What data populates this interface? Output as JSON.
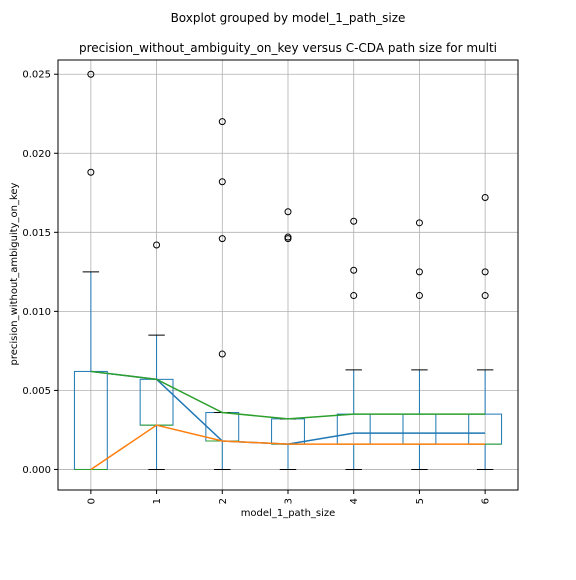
{
  "chart_data": {
    "type": "boxplot",
    "suptitle": "Boxplot grouped by model_1_path_size",
    "title": "precision_without_ambiguity_on_key versus C-CDA path size for multi",
    "xlabel": "model_1_path_size",
    "ylabel": "precision_without_ambiguity_on_key",
    "categories": [
      "0",
      "1",
      "2",
      "3",
      "4",
      "5",
      "6"
    ],
    "ylim": [
      -0.0013,
      0.0259
    ],
    "yticks": [
      0.0,
      0.005,
      0.01,
      0.015,
      0.02,
      0.025
    ],
    "ytick_labels": [
      "0.000",
      "0.005",
      "0.010",
      "0.015",
      "0.020",
      "0.025"
    ],
    "grid": true,
    "boxes": [
      {
        "category": "0",
        "whisker_low": 0.0,
        "q1": 0.0,
        "median": 0.0,
        "q3": 0.0062,
        "whisker_high": 0.0125,
        "outliers": [
          0.0188,
          0.025
        ]
      },
      {
        "category": "1",
        "whisker_low": 0.0,
        "q1": 0.0028,
        "median": 0.0028,
        "q3": 0.0057,
        "whisker_high": 0.0085,
        "outliers": [
          0.0142
        ]
      },
      {
        "category": "2",
        "whisker_low": 0.0,
        "q1": 0.0018,
        "median": 0.0018,
        "q3": 0.0036,
        "whisker_high": 0.0036,
        "outliers": [
          0.0073,
          0.0146,
          0.0182,
          0.022
        ]
      },
      {
        "category": "3",
        "whisker_low": 0.0,
        "q1": 0.0016,
        "median": 0.0016,
        "q3": 0.0032,
        "whisker_high": 0.0032,
        "outliers": [
          0.0146,
          0.0147,
          0.0163
        ]
      },
      {
        "category": "4",
        "whisker_low": 0.0,
        "q1": 0.0016,
        "median": 0.0016,
        "q3": 0.0035,
        "whisker_high": 0.0063,
        "outliers": [
          0.011,
          0.0126,
          0.0157
        ]
      },
      {
        "category": "5",
        "whisker_low": 0.0,
        "q1": 0.0016,
        "median": 0.0016,
        "q3": 0.0035,
        "whisker_high": 0.0063,
        "outliers": [
          0.011,
          0.0125,
          0.0156
        ]
      },
      {
        "category": "6",
        "whisker_low": 0.0,
        "q1": 0.0016,
        "median": 0.0016,
        "q3": 0.0035,
        "whisker_high": 0.0063,
        "outliers": [
          0.011,
          0.0125,
          0.0172
        ]
      }
    ],
    "series": [
      {
        "color": "#1f77b4",
        "values": [
          0.0062,
          0.0057,
          0.0018,
          0.0016,
          0.0023,
          0.0023,
          0.0023
        ]
      },
      {
        "color": "#ff7f0e",
        "values": [
          0.0,
          0.0028,
          0.0018,
          0.0016,
          0.0016,
          0.0016,
          0.0016
        ]
      },
      {
        "color": "#2ca02c",
        "values": [
          0.0062,
          0.0057,
          0.0036,
          0.0032,
          0.0035,
          0.0035,
          0.0035
        ]
      }
    ],
    "colors": {
      "box": "#1f77b4",
      "median": "#2ca02c",
      "whisker": "#1f77b4",
      "cap": "#000000",
      "outlier": "#000000",
      "grid": "#b0b0b0"
    }
  }
}
